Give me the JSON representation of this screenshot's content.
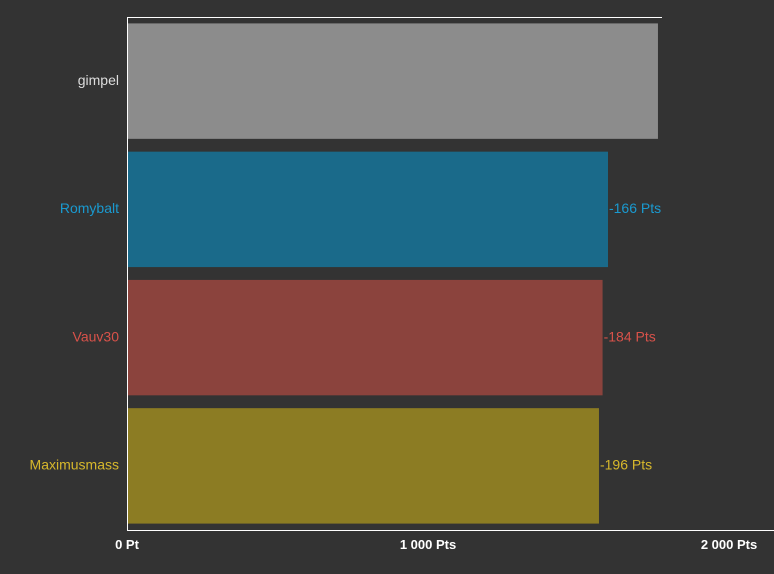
{
  "chart_data": {
    "type": "bar",
    "orientation": "horizontal",
    "categories": [
      "gimpel",
      "Romybalt",
      "Vauv30",
      "Maximusmass"
    ],
    "values": [
      1764,
      1598,
      1580,
      1568
    ],
    "data_labels": [
      "",
      "-166 Pts",
      "-184 Pts",
      "-196 Pts"
    ],
    "colors": [
      "#8c8c8c",
      "#1a6a8a",
      "#8b433d",
      "#8c7c23"
    ],
    "label_colors": [
      "#dddddd",
      "#1a9ad0",
      "#d8524a",
      "#d7b82c"
    ],
    "x_ticks": [
      {
        "value": 0,
        "label": "0 Pt"
      },
      {
        "value": 1000,
        "label": "1 000 Pts"
      },
      {
        "value": 2000,
        "label": "2 000 Pts"
      }
    ],
    "xlim": [
      0,
      2100
    ],
    "grid": false,
    "background": "#333333",
    "axis_color": "#ffffff"
  }
}
